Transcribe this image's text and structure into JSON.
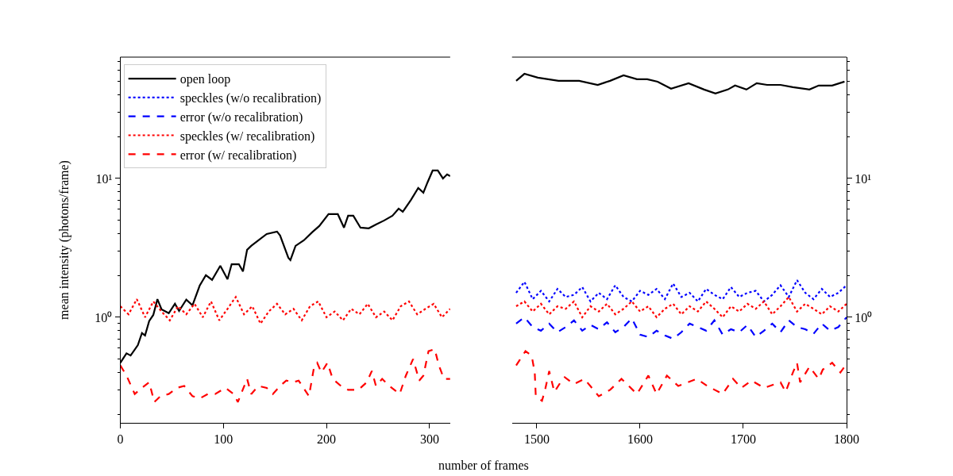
{
  "chart_data": [
    {
      "type": "line",
      "ylabel": "mean intensity (photons/frame)",
      "xlabel": "number of frames",
      "xlim": [
        0,
        320
      ],
      "xticks": [
        0,
        100,
        200,
        300
      ],
      "ylim": [
        0.174,
        74.8
      ],
      "log": true,
      "legend": "top left",
      "yticks": [
        {
          "value": 0.2,
          "label": null
        },
        {
          "value": 0.3,
          "label": null
        },
        {
          "value": 0.4,
          "label": null
        },
        {
          "value": 0.5,
          "label": null
        },
        {
          "value": 0.6,
          "label": null
        },
        {
          "value": 0.7,
          "label": null
        },
        {
          "value": 0.8,
          "label": null
        },
        {
          "value": 0.9,
          "label": null
        },
        {
          "value": 1,
          "label": "10⁰"
        },
        {
          "value": 2,
          "label": null
        },
        {
          "value": 3,
          "label": null
        },
        {
          "value": 4,
          "label": null
        },
        {
          "value": 5,
          "label": null
        },
        {
          "value": 6,
          "label": null
        },
        {
          "value": 7,
          "label": null
        },
        {
          "value": 8,
          "label": null
        },
        {
          "value": 9,
          "label": null
        },
        {
          "value": 10,
          "label": "10¹"
        },
        {
          "value": 20,
          "label": null
        },
        {
          "value": 30,
          "label": null
        },
        {
          "value": 40,
          "label": null
        },
        {
          "value": 50,
          "label": null
        },
        {
          "value": 60,
          "label": null
        },
        {
          "value": 70,
          "label": null
        }
      ],
      "series": [
        {
          "color": "#000000",
          "line_style": "solid",
          "x": [
            0,
            6,
            10,
            17,
            21,
            24,
            28,
            32,
            36,
            40,
            47,
            53,
            57,
            64,
            70,
            77,
            83,
            89,
            97,
            104,
            108,
            115,
            119,
            123,
            127,
            134,
            142,
            152,
            155,
            163,
            165,
            170,
            178,
            186,
            193,
            202,
            211,
            217,
            221,
            226,
            233,
            241,
            248,
            256,
            264,
            270,
            274,
            282,
            289,
            294,
            298,
            303,
            308,
            313,
            317,
            320
          ],
          "values": [
            0.47,
            0.55,
            0.53,
            0.63,
            0.77,
            0.74,
            0.94,
            1.04,
            1.35,
            1.14,
            1.07,
            1.25,
            1.11,
            1.34,
            1.22,
            1.69,
            2.01,
            1.86,
            2.35,
            1.88,
            2.41,
            2.41,
            2.14,
            3.06,
            3.27,
            3.58,
            3.98,
            4.14,
            3.88,
            2.68,
            2.58,
            3.27,
            3.58,
            4.09,
            4.54,
            5.53,
            5.53,
            4.42,
            5.39,
            5.39,
            4.42,
            4.37,
            4.66,
            4.98,
            5.39,
            6.06,
            5.75,
            7.01,
            8.54,
            7.89,
            9.36,
            11.4,
            11.4,
            10.0,
            10.7,
            10.4
          ]
        },
        {
          "color": "#ff0000",
          "line_style": "dotted",
          "x": [
            0,
            8,
            16,
            24,
            32,
            40,
            48,
            56,
            64,
            72,
            80,
            88,
            96,
            104,
            112,
            120,
            128,
            136,
            144,
            152,
            160,
            168,
            176,
            184,
            192,
            200,
            208,
            216,
            224,
            232,
            240,
            248,
            256,
            264,
            272,
            280,
            288,
            296,
            304,
            312,
            320
          ],
          "values": [
            1.2,
            1.05,
            1.35,
            1.0,
            1.3,
            1.1,
            0.95,
            1.2,
            1.05,
            1.25,
            1.0,
            1.3,
            0.95,
            1.15,
            1.4,
            1.05,
            1.2,
            0.9,
            1.1,
            1.25,
            1.05,
            1.15,
            0.95,
            1.2,
            1.3,
            1.0,
            1.1,
            0.95,
            1.15,
            1.05,
            1.25,
            1.0,
            1.1,
            0.95,
            1.2,
            1.3,
            1.05,
            1.15,
            1.25,
            1.0,
            1.15
          ]
        },
        {
          "color": "#ff0000",
          "line_style": "dashed",
          "x": [
            0,
            6,
            14,
            21,
            28,
            33,
            39,
            47,
            55,
            62,
            70,
            77,
            85,
            92,
            102,
            110,
            114,
            123,
            127,
            134,
            142,
            148,
            155,
            161,
            168,
            173,
            183,
            188,
            191,
            195,
            201,
            206,
            214,
            221,
            231,
            239,
            244,
            248,
            254,
            261,
            271,
            277,
            284,
            290,
            294,
            299,
            305,
            309,
            314,
            320
          ],
          "values": [
            0.45,
            0.38,
            0.28,
            0.31,
            0.34,
            0.245,
            0.27,
            0.28,
            0.31,
            0.32,
            0.27,
            0.26,
            0.28,
            0.28,
            0.31,
            0.28,
            0.245,
            0.36,
            0.28,
            0.32,
            0.31,
            0.28,
            0.32,
            0.35,
            0.34,
            0.35,
            0.27,
            0.44,
            0.47,
            0.4,
            0.47,
            0.36,
            0.32,
            0.3,
            0.3,
            0.34,
            0.41,
            0.32,
            0.36,
            0.32,
            0.28,
            0.38,
            0.5,
            0.35,
            0.38,
            0.57,
            0.59,
            0.45,
            0.36,
            0.36
          ]
        }
      ]
    },
    {
      "type": "line",
      "xlim": [
        1476,
        1800
      ],
      "xticks": [
        1500,
        1600,
        1700,
        1800
      ],
      "ylim": [
        0.174,
        74.8
      ],
      "log": true,
      "legend": "left",
      "yticks": [
        {
          "value": 0.2,
          "label": null
        },
        {
          "value": 0.3,
          "label": null
        },
        {
          "value": 0.4,
          "label": null
        },
        {
          "value": 0.5,
          "label": null
        },
        {
          "value": 0.6,
          "label": null
        },
        {
          "value": 0.7,
          "label": null
        },
        {
          "value": 0.8,
          "label": null
        },
        {
          "value": 0.9,
          "label": null
        },
        {
          "value": 1,
          "label": "10⁰"
        },
        {
          "value": 2,
          "label": null
        },
        {
          "value": 3,
          "label": null
        },
        {
          "value": 4,
          "label": null
        },
        {
          "value": 5,
          "label": null
        },
        {
          "value": 6,
          "label": null
        },
        {
          "value": 7,
          "label": null
        },
        {
          "value": 8,
          "label": null
        },
        {
          "value": 9,
          "label": null
        },
        {
          "value": 10,
          "label": "10¹"
        },
        {
          "value": 20,
          "label": null
        },
        {
          "value": 30,
          "label": null
        },
        {
          "value": 40,
          "label": null
        },
        {
          "value": 50,
          "label": null
        },
        {
          "value": 60,
          "label": null
        },
        {
          "value": 70,
          "label": null
        }
      ],
      "series": [
        {
          "name": "open loop",
          "color": "#000000",
          "line_style": "solid",
          "x": [
            1480,
            1488,
            1501,
            1521,
            1541,
            1559,
            1571,
            1584,
            1597,
            1607,
            1617,
            1630,
            1647,
            1662,
            1673,
            1685,
            1692,
            1703,
            1713,
            1723,
            1736,
            1748,
            1764,
            1773,
            1786,
            1798
          ],
          "values": [
            50.5,
            56.7,
            53.2,
            50.5,
            50.5,
            47.2,
            50.5,
            55.3,
            51.8,
            51.8,
            49.8,
            44.3,
            48.5,
            43.7,
            40.9,
            43.7,
            46.7,
            43.7,
            48.5,
            47.2,
            47.2,
            45.4,
            43.7,
            46.7,
            46.7,
            49.8
          ]
        },
        {
          "name": "speckles (w/o recalibration)",
          "color": "#0000ff",
          "line_style": "dotted",
          "x": [
            1480,
            1488,
            1496,
            1504,
            1512,
            1520,
            1528,
            1536,
            1544,
            1552,
            1560,
            1568,
            1576,
            1584,
            1592,
            1600,
            1608,
            1616,
            1624,
            1632,
            1640,
            1648,
            1656,
            1664,
            1672,
            1680,
            1688,
            1696,
            1704,
            1712,
            1720,
            1728,
            1736,
            1744,
            1752,
            1760,
            1768,
            1776,
            1784,
            1792,
            1800
          ],
          "values": [
            1.5,
            1.8,
            1.35,
            1.55,
            1.3,
            1.6,
            1.4,
            1.45,
            1.65,
            1.3,
            1.5,
            1.35,
            1.7,
            1.4,
            1.3,
            1.55,
            1.45,
            1.6,
            1.35,
            1.75,
            1.4,
            1.5,
            1.3,
            1.6,
            1.45,
            1.35,
            1.65,
            1.4,
            1.5,
            1.55,
            1.3,
            1.45,
            1.7,
            1.4,
            1.85,
            1.5,
            1.35,
            1.6,
            1.4,
            1.5,
            1.7
          ]
        },
        {
          "name": "error (w/o recalibration)",
          "color": "#0000ff",
          "line_style": "dashed",
          "x": [
            1480,
            1488,
            1496,
            1504,
            1512,
            1520,
            1528,
            1536,
            1544,
            1552,
            1560,
            1568,
            1576,
            1584,
            1592,
            1600,
            1608,
            1616,
            1624,
            1632,
            1640,
            1648,
            1656,
            1664,
            1672,
            1680,
            1688,
            1696,
            1704,
            1712,
            1720,
            1728,
            1736,
            1744,
            1752,
            1760,
            1768,
            1776,
            1784,
            1792,
            1800
          ],
          "values": [
            0.9,
            1.0,
            0.85,
            0.8,
            0.9,
            0.78,
            0.85,
            0.95,
            0.8,
            0.88,
            0.82,
            0.92,
            0.78,
            0.85,
            0.98,
            0.75,
            0.72,
            0.8,
            0.74,
            0.7,
            0.78,
            0.9,
            0.85,
            0.8,
            0.95,
            0.75,
            0.82,
            0.78,
            0.88,
            0.72,
            0.8,
            0.9,
            0.78,
            0.95,
            0.85,
            0.82,
            0.76,
            0.9,
            0.8,
            0.85,
            1.0
          ]
        },
        {
          "name": "speckles (w/ recalibration)",
          "color": "#ff0000",
          "line_style": "dotted",
          "x": [
            1480,
            1488,
            1496,
            1504,
            1512,
            1520,
            1528,
            1536,
            1544,
            1552,
            1560,
            1568,
            1576,
            1584,
            1592,
            1600,
            1608,
            1616,
            1624,
            1632,
            1640,
            1648,
            1656,
            1664,
            1672,
            1680,
            1688,
            1696,
            1704,
            1712,
            1720,
            1728,
            1736,
            1744,
            1752,
            1760,
            1768,
            1776,
            1784,
            1792,
            1800
          ],
          "values": [
            1.2,
            1.3,
            1.1,
            1.25,
            1.05,
            1.2,
            1.15,
            1.3,
            1.0,
            1.2,
            1.1,
            1.25,
            1.05,
            1.15,
            1.3,
            1.1,
            1.2,
            1.0,
            1.15,
            1.25,
            1.05,
            1.2,
            1.1,
            1.3,
            1.15,
            1.0,
            1.2,
            1.1,
            1.25,
            1.15,
            1.3,
            1.05,
            1.2,
            1.4,
            1.1,
            1.25,
            1.15,
            1.05,
            1.2,
            1.1,
            1.25
          ]
        },
        {
          "name": "error (w/ recalibration)",
          "color": "#ff0000",
          "line_style": "dashed",
          "x": [
            1480,
            1489,
            1495,
            1498,
            1499,
            1505,
            1508,
            1512,
            1517,
            1523,
            1527,
            1536,
            1546,
            1560,
            1571,
            1582,
            1597,
            1608,
            1616,
            1626,
            1637,
            1655,
            1665,
            1680,
            1690,
            1698,
            1708,
            1720,
            1736,
            1741,
            1748,
            1752,
            1755,
            1764,
            1773,
            1777,
            1786,
            1794,
            1798
          ],
          "values": [
            0.45,
            0.57,
            0.53,
            0.4,
            0.27,
            0.25,
            0.3,
            0.41,
            0.29,
            0.34,
            0.37,
            0.33,
            0.36,
            0.27,
            0.3,
            0.36,
            0.28,
            0.38,
            0.28,
            0.38,
            0.32,
            0.36,
            0.32,
            0.28,
            0.36,
            0.31,
            0.35,
            0.31,
            0.34,
            0.29,
            0.4,
            0.47,
            0.34,
            0.44,
            0.36,
            0.42,
            0.47,
            0.4,
            0.44
          ]
        }
      ]
    }
  ]
}
